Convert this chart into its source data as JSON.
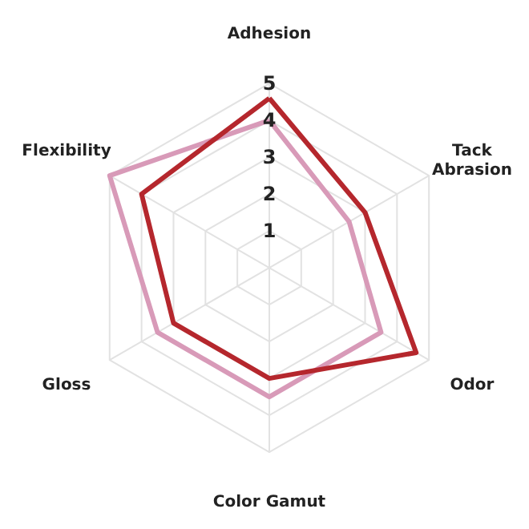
{
  "chart_data": {
    "type": "radar",
    "categories": [
      "Adhesion",
      "Tack\nAbrasion",
      "Odor",
      "Color Gamut",
      "Gloss",
      "Flexibility"
    ],
    "series": [
      {
        "color": "#b5272d",
        "values": [
          4.6,
          3.0,
          4.6,
          3.0,
          3.0,
          4.0
        ]
      },
      {
        "color": "#d89ab8",
        "values": [
          4.0,
          2.5,
          3.5,
          3.5,
          3.5,
          5.0
        ]
      }
    ],
    "ylim": [
      0,
      5
    ],
    "yticks": [
      1,
      2,
      3,
      4,
      5
    ],
    "grid": true
  }
}
